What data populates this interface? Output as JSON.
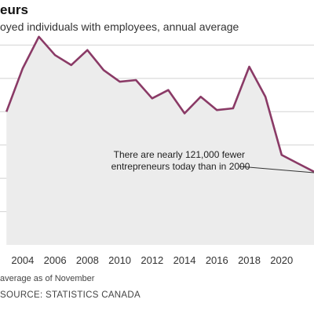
{
  "header": {
    "title": "eurs",
    "subtitle": "oyed individuals with employees, annual average"
  },
  "colors": {
    "line": "#8a3a66",
    "fill": "#ececec",
    "grid": "#d2d2d2",
    "annotation_leader": "#333333"
  },
  "chart_data": {
    "type": "area",
    "x": [
      2003,
      2004,
      2005,
      2006,
      2007,
      2008,
      2009,
      2010,
      2011,
      2012,
      2013,
      2014,
      2015,
      2016,
      2017,
      2018,
      2019,
      2020,
      2021,
      2022
    ],
    "series": [
      {
        "values": [
          900,
          1030,
          1125,
          1070,
          1040,
          1085,
          1025,
          990,
          995,
          940,
          965,
          895,
          945,
          905,
          910,
          1035,
          945,
          770,
          745,
          720
        ]
      }
    ],
    "xlim": [
      2002.6,
      2022
    ],
    "ylim": [
      500,
      1200
    ],
    "y_gridlines": [
      600,
      700,
      800,
      900,
      1000,
      1100
    ],
    "x_ticks": [
      2004,
      2006,
      2008,
      2010,
      2012,
      2014,
      2016,
      2018,
      2020
    ],
    "x_tick_labels": [
      "2004",
      "2006",
      "2008",
      "2010",
      "2012",
      "2014",
      "2016",
      "2018",
      "2020"
    ],
    "grid": true,
    "annotation": {
      "lines": [
        "There are nearly 121,000 fewer",
        "entrepreneurs today than in 2000"
      ]
    }
  },
  "footer": {
    "note": "average as of November",
    "source": "SOURCE: STATISTICS CANADA"
  }
}
